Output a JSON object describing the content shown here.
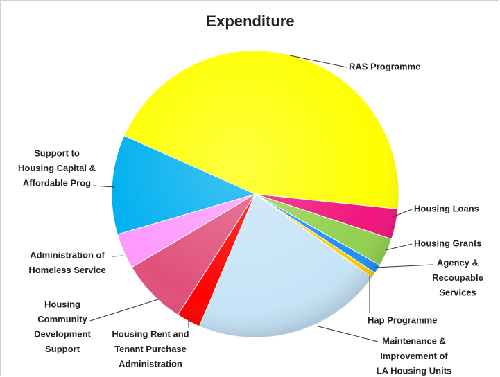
{
  "chart_data": {
    "type": "pie",
    "title": "Expenditure",
    "labels": [
      [
        "RAS Programme"
      ],
      [
        "Housing Loans"
      ],
      [
        "Housing Grants"
      ],
      [
        "Agency &",
        "Recoupable",
        "Services"
      ],
      [
        "Hap Programme"
      ],
      [
        "Maintenance &",
        "Improvement of",
        "LA Housing Units"
      ],
      [
        "Housing Rent and",
        "Tenant Purchase",
        "Administration"
      ],
      [
        "Housing",
        "Community",
        "Development",
        "Support"
      ],
      [
        "Administration of",
        "Homeless Service"
      ],
      [
        "Support to",
        "Housing Capital &",
        "Affordable Prog"
      ]
    ],
    "values": [
      45,
      3.4,
      3.2,
      1,
      0.6,
      21.5,
      2.7,
      7.4,
      4,
      11.2
    ],
    "colors": [
      "#ffff00",
      "#f0147c",
      "#92d050",
      "#1e90ff",
      "#ffcc00",
      "#c6e4f8",
      "#ff0000",
      "#e0507a",
      "#ff99ff",
      "#00b0f0"
    ]
  }
}
